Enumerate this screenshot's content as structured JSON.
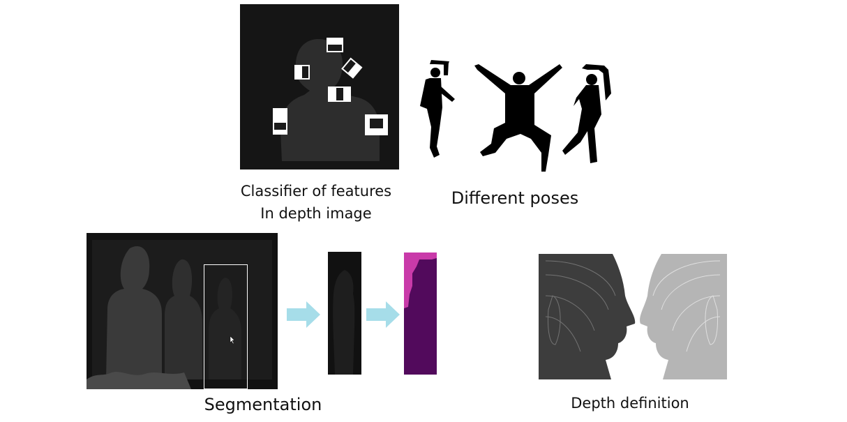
{
  "captions": {
    "classifier_line1": "Classifier of features",
    "classifier_line2": "In depth image",
    "poses": "Different poses",
    "segmentation": "Segmentation",
    "depth": "Depth definition"
  },
  "colors": {
    "depth_bg": "#141414",
    "arrow": "#a6dde9",
    "segment_magenta": "#c93aa9",
    "segment_purple": "#520a5c",
    "face_dark": "#3d3d3d",
    "face_light": "#b5b5b5"
  },
  "icons": [
    "right-arrow-icon",
    "right-arrow-icon",
    "cursor-icon"
  ]
}
